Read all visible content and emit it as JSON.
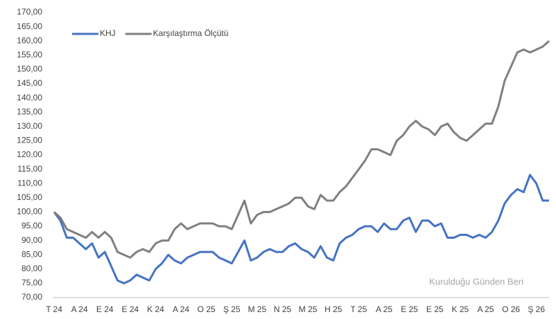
{
  "chart_data": {
    "type": "line",
    "watermark": "Kurulduğu Günden Beri",
    "categories": [
      "T 24",
      null,
      null,
      null,
      "A 24",
      null,
      null,
      null,
      "E 24",
      null,
      null,
      null,
      "E 24",
      null,
      null,
      null,
      "K 24",
      null,
      null,
      null,
      "A 24",
      null,
      null,
      null,
      "O 25",
      null,
      null,
      null,
      "Ş 25",
      null,
      null,
      null,
      "M 25",
      null,
      null,
      null,
      "N 25",
      null,
      null,
      null,
      "M 25",
      null,
      null,
      null,
      "H 25",
      null,
      null,
      null,
      "T 25",
      null,
      null,
      null,
      "A 25",
      null,
      null,
      null,
      "E 25",
      null,
      null,
      null,
      "E 25",
      null,
      null,
      null,
      "K 25",
      null,
      null,
      null,
      "A 25",
      null,
      null,
      null,
      "O 26",
      null,
      null,
      null,
      "Ş 26",
      null,
      null
    ],
    "series": [
      {
        "name": "KHJ",
        "color": "#4472c4",
        "values": [
          100,
          97,
          91,
          91,
          89,
          87,
          89,
          84,
          86,
          81,
          76,
          75,
          76,
          78,
          77,
          76,
          80,
          82,
          85,
          83,
          82,
          84,
          85,
          86,
          86,
          86,
          84,
          83,
          82,
          86,
          90,
          83,
          84,
          86,
          87,
          86,
          86,
          88,
          89,
          87,
          86,
          84,
          88,
          84,
          83,
          89,
          91,
          92,
          94,
          95,
          95,
          93,
          96,
          94,
          94,
          97,
          98,
          93,
          97,
          97,
          95,
          96,
          91,
          91,
          92,
          92,
          91,
          92,
          91,
          93,
          97,
          103,
          106,
          108,
          107,
          113,
          110,
          104,
          104
        ]
      },
      {
        "name": "Karşılaştırma Ölçütü",
        "color": "#7f7f7f",
        "values": [
          100,
          98,
          94,
          93,
          92,
          91,
          93,
          91,
          93,
          91,
          86,
          85,
          84,
          86,
          87,
          86,
          89,
          90,
          90,
          94,
          96,
          94,
          95,
          96,
          96,
          96,
          95,
          95,
          94,
          99,
          104,
          96,
          99,
          100,
          100,
          101,
          102,
          103,
          105,
          105,
          102,
          101,
          106,
          104,
          104,
          107,
          109,
          112,
          115,
          118,
          122,
          122,
          121,
          120,
          125,
          127,
          130,
          132,
          130,
          129,
          127,
          130,
          131,
          128,
          126,
          125,
          127,
          129,
          131,
          131,
          137,
          146,
          151,
          156,
          157,
          156,
          157,
          158,
          160
        ]
      }
    ],
    "ylim": [
      70,
      170
    ],
    "yticks": [
      {
        "value": 70,
        "label": "70,00"
      },
      {
        "value": 75,
        "label": "75,00"
      },
      {
        "value": 80,
        "label": "80,00"
      },
      {
        "value": 85,
        "label": "85,00"
      },
      {
        "value": 90,
        "label": "90,00"
      },
      {
        "value": 95,
        "label": "95,00"
      },
      {
        "value": 100,
        "label": "100,00"
      },
      {
        "value": 105,
        "label": "105,00"
      },
      {
        "value": 110,
        "label": "110,00"
      },
      {
        "value": 115,
        "label": "115,00"
      },
      {
        "value": 120,
        "label": "120,00"
      },
      {
        "value": 125,
        "label": "125,00"
      },
      {
        "value": 130,
        "label": "130,00"
      },
      {
        "value": 135,
        "label": "135,00"
      },
      {
        "value": 140,
        "label": "140,00"
      },
      {
        "value": 145,
        "label": "145,00"
      },
      {
        "value": 150,
        "label": "150,00"
      },
      {
        "value": 155,
        "label": "155,00"
      },
      {
        "value": 160,
        "label": "160,00"
      },
      {
        "value": 165,
        "label": "165,00"
      },
      {
        "value": 170,
        "label": "170,00"
      }
    ],
    "grid": false,
    "legend": "top-left"
  }
}
